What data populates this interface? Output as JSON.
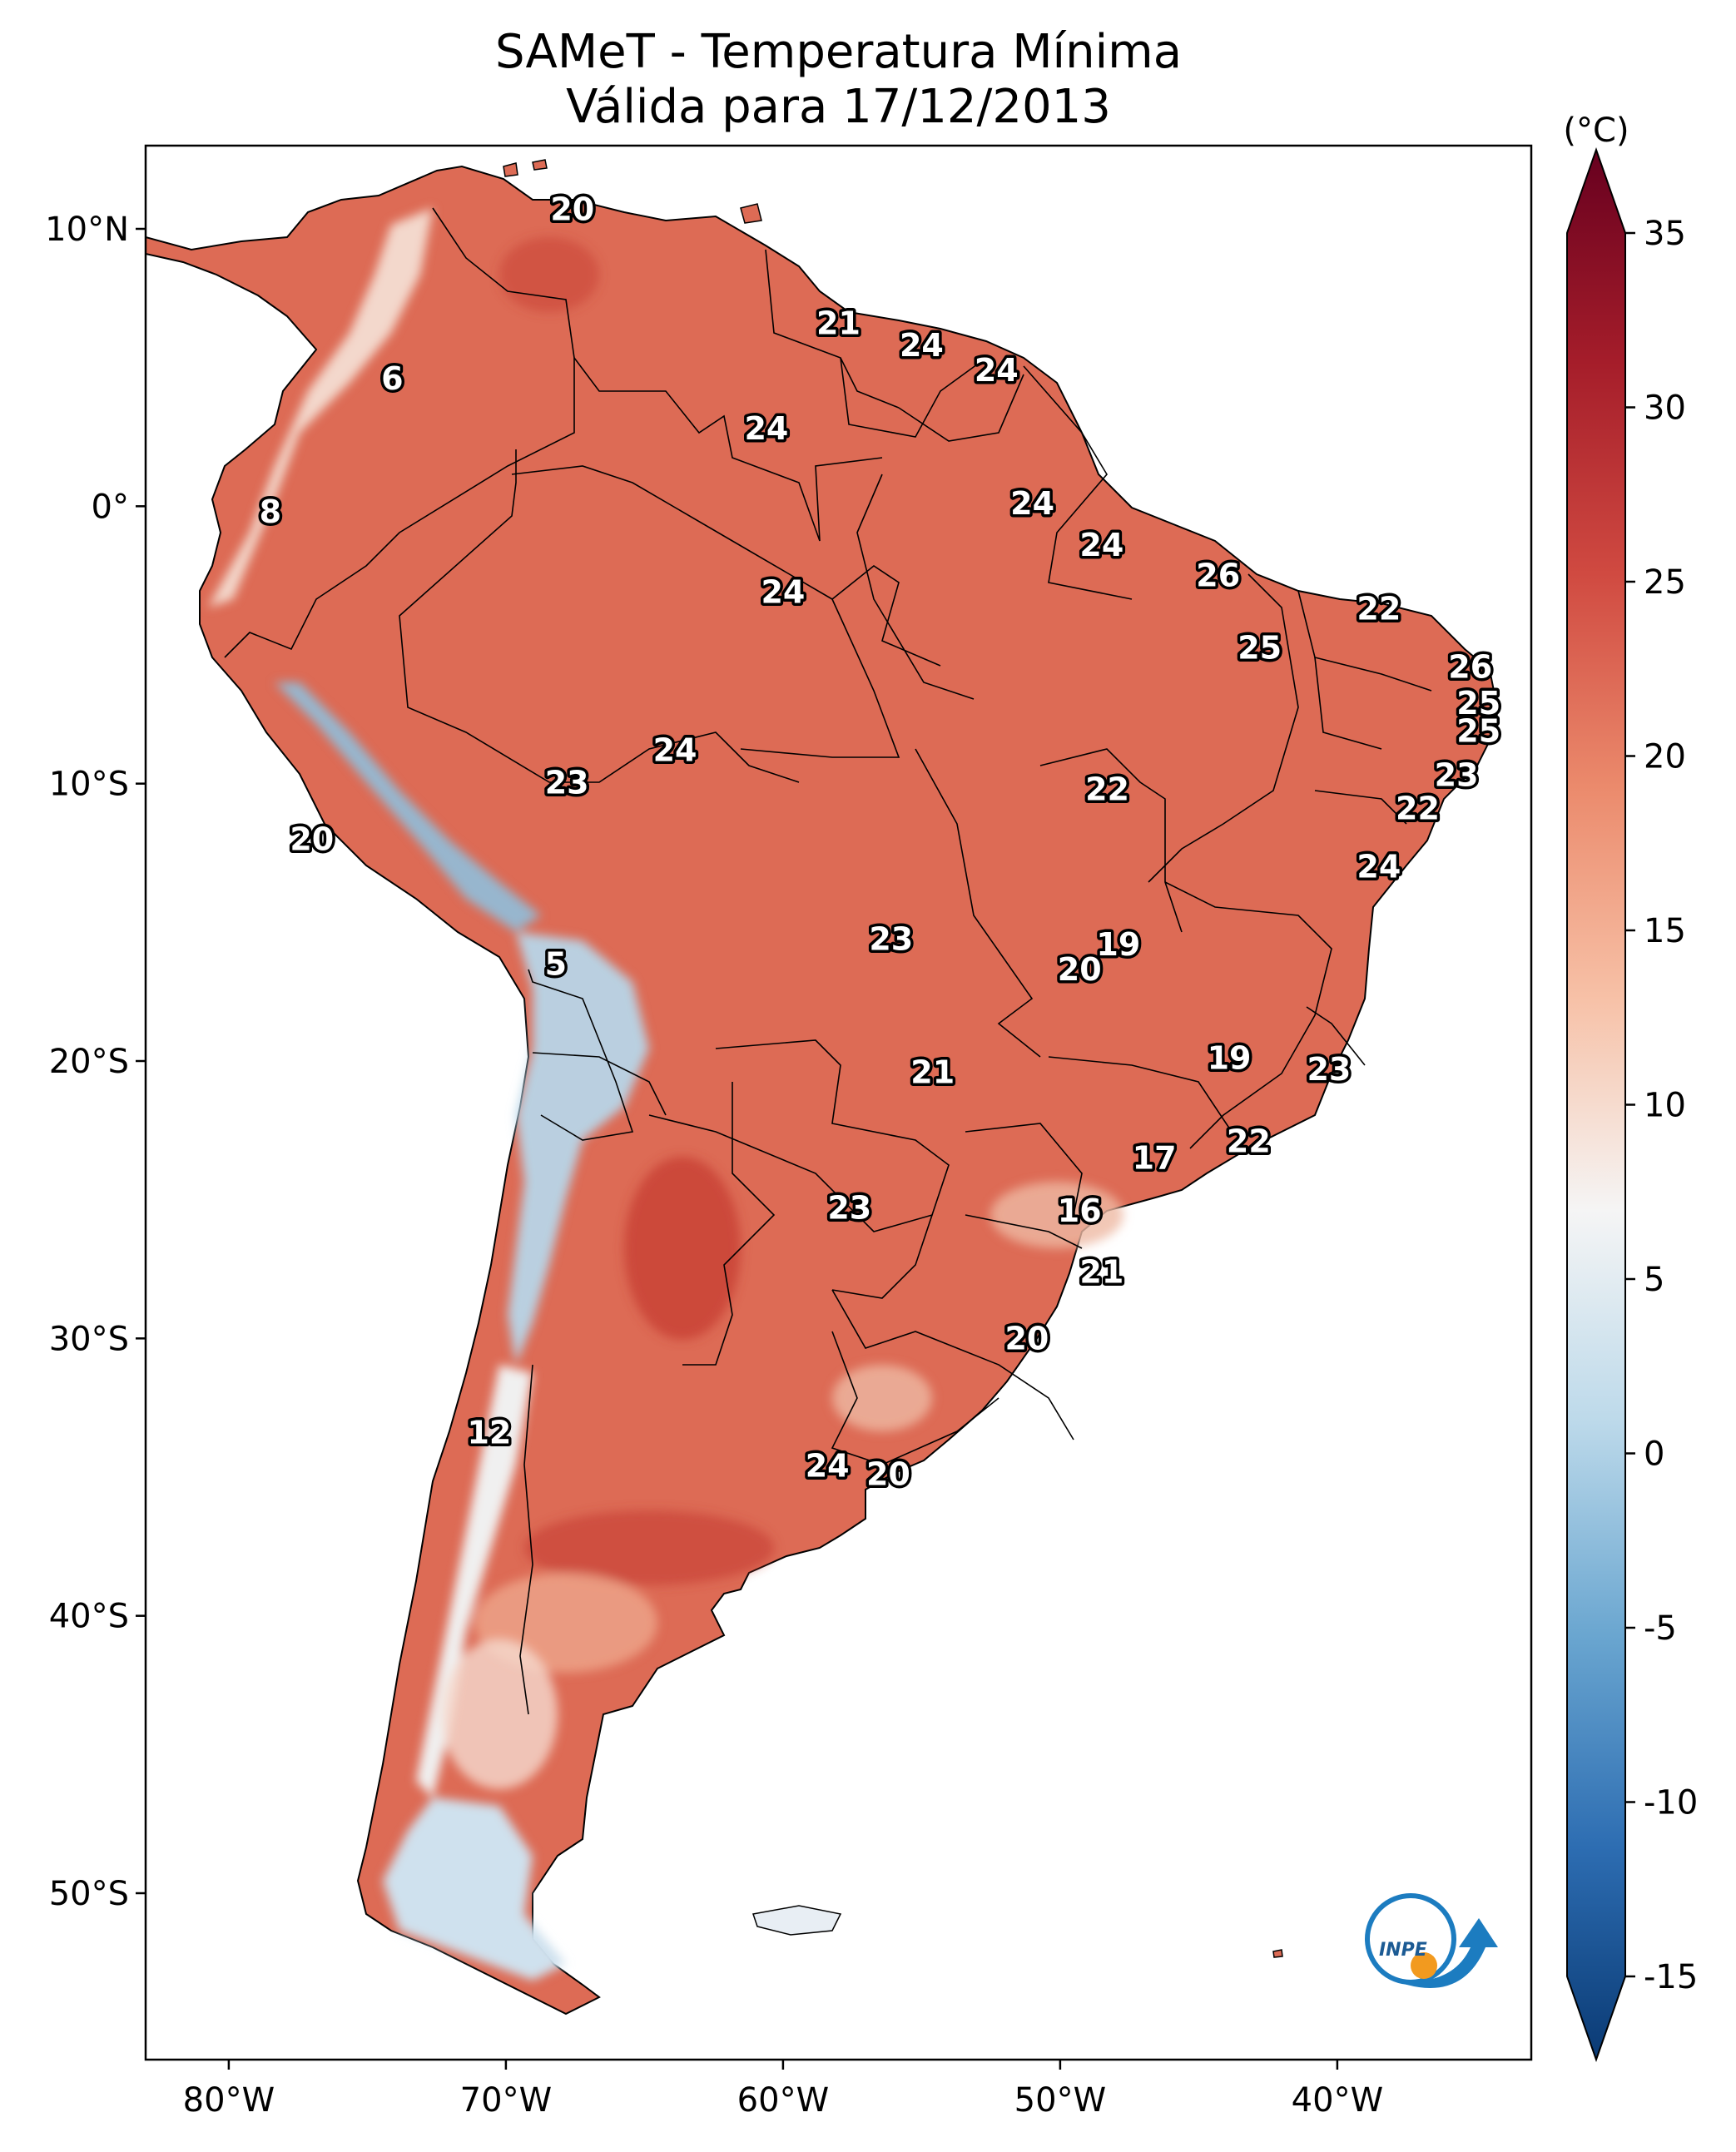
{
  "title": {
    "line1": "SAMeT - Temperatura Mínima",
    "line2": "Válida para 17/12/2013"
  },
  "map": {
    "lon_range": [
      -83,
      -33
    ],
    "lat_range": [
      -56,
      13
    ],
    "lon_ticks": [
      "80°W",
      "70°W",
      "60°W",
      "50°W",
      "40°W"
    ],
    "lat_ticks": [
      "10°N",
      "0°",
      "10°S",
      "20°S",
      "30°S",
      "40°S",
      "50°S"
    ],
    "logo": "INPE"
  },
  "colorbar": {
    "unit": "(°C)",
    "min": -15,
    "max": 35,
    "ticks": [
      "35",
      "30",
      "25",
      "20",
      "15",
      "10",
      "5",
      "0",
      "-5",
      "-10",
      "-15"
    ],
    "colormap": [
      "#0a3a74",
      "#2d6db2",
      "#6aa6d0",
      "#bcd9ea",
      "#f5f5f5",
      "#f7c1a7",
      "#eb8a6c",
      "#d04a41",
      "#a51d2a",
      "#67001f"
    ]
  },
  "station_labels": [
    {
      "text": "20",
      "lon": -67.6,
      "lat": 10.7
    },
    {
      "text": "21",
      "lon": -58.0,
      "lat": 6.6
    },
    {
      "text": "24",
      "lon": -55.0,
      "lat": 5.8
    },
    {
      "text": "24",
      "lon": -52.3,
      "lat": 4.9
    },
    {
      "text": "6",
      "lon": -74.1,
      "lat": 4.6
    },
    {
      "text": "24",
      "lon": -60.6,
      "lat": 2.8
    },
    {
      "text": "24",
      "lon": -51.0,
      "lat": 0.1
    },
    {
      "text": "8",
      "lon": -78.5,
      "lat": -0.2
    },
    {
      "text": "24",
      "lon": -48.5,
      "lat": -1.4
    },
    {
      "text": "26",
      "lon": -44.3,
      "lat": -2.5
    },
    {
      "text": "24",
      "lon": -60.0,
      "lat": -3.1
    },
    {
      "text": "22",
      "lon": -38.5,
      "lat": -3.7
    },
    {
      "text": "25",
      "lon": -42.8,
      "lat": -5.1
    },
    {
      "text": "26",
      "lon": -35.2,
      "lat": -5.8
    },
    {
      "text": "25",
      "lon": -34.9,
      "lat": -7.1
    },
    {
      "text": "25",
      "lon": -34.9,
      "lat": -8.1
    },
    {
      "text": "24",
      "lon": -63.9,
      "lat": -8.8
    },
    {
      "text": "23",
      "lon": -67.8,
      "lat": -9.97
    },
    {
      "text": "22",
      "lon": -48.3,
      "lat": -10.2
    },
    {
      "text": "23",
      "lon": -35.7,
      "lat": -9.7
    },
    {
      "text": "22",
      "lon": -37.1,
      "lat": -10.9
    },
    {
      "text": "20",
      "lon": -77.0,
      "lat": -12.0
    },
    {
      "text": "24",
      "lon": -38.5,
      "lat": -13.0
    },
    {
      "text": "23",
      "lon": -56.1,
      "lat": -15.6
    },
    {
      "text": "19",
      "lon": -47.9,
      "lat": -15.8
    },
    {
      "text": "5",
      "lon": -68.2,
      "lat": -16.5
    },
    {
      "text": "20",
      "lon": -49.3,
      "lat": -16.7
    },
    {
      "text": "19",
      "lon": -43.9,
      "lat": -19.9
    },
    {
      "text": "21",
      "lon": -54.6,
      "lat": -20.4
    },
    {
      "text": "23",
      "lon": -40.3,
      "lat": -20.3
    },
    {
      "text": "22",
      "lon": -43.2,
      "lat": -22.9
    },
    {
      "text": "17",
      "lon": -46.6,
      "lat": -23.5
    },
    {
      "text": "16",
      "lon": -49.3,
      "lat": -25.4
    },
    {
      "text": "23",
      "lon": -57.6,
      "lat": -25.3
    },
    {
      "text": "21",
      "lon": -48.5,
      "lat": -27.6
    },
    {
      "text": "20",
      "lon": -51.2,
      "lat": -30.0
    },
    {
      "text": "12",
      "lon": -70.6,
      "lat": -33.4
    },
    {
      "text": "24",
      "lon": -58.4,
      "lat": -34.6
    },
    {
      "text": "20",
      "lon": -56.2,
      "lat": -34.9
    }
  ]
}
